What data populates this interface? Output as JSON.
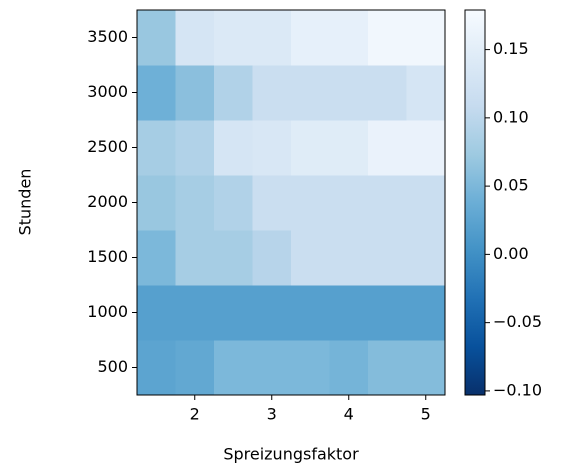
{
  "chart_data": {
    "type": "heatmap",
    "xlabel": "Spreizungsfaktor",
    "ylabel": "Stunden",
    "x": [
      1.5,
      2,
      2.5,
      3,
      3.5,
      4,
      4.5,
      5
    ],
    "y": [
      500,
      1000,
      1500,
      2000,
      2500,
      3000,
      3500
    ],
    "values": [
      [
        0.025,
        0.03,
        0.05,
        0.05,
        0.05,
        0.045,
        0.055,
        0.055
      ],
      [
        0.02,
        0.02,
        0.02,
        0.02,
        0.02,
        0.02,
        0.02,
        0.02
      ],
      [
        0.05,
        0.08,
        0.08,
        0.095,
        0.115,
        0.115,
        0.115,
        0.115
      ],
      [
        0.07,
        0.08,
        0.09,
        0.115,
        0.115,
        0.115,
        0.115,
        0.115
      ],
      [
        0.08,
        0.09,
        0.13,
        0.135,
        0.145,
        0.145,
        0.16,
        0.16
      ],
      [
        0.04,
        0.06,
        0.09,
        0.115,
        0.115,
        0.115,
        0.115,
        0.13
      ],
      [
        0.07,
        0.13,
        0.14,
        0.14,
        0.155,
        0.155,
        0.17,
        0.17
      ]
    ],
    "xlim": [
      1.25,
      5.25
    ],
    "xticks": [
      2,
      3,
      4,
      5
    ],
    "ylim": [
      250,
      3750
    ],
    "yticks": [
      500,
      1000,
      1500,
      2000,
      2500,
      3000,
      3500
    ],
    "clim": [
      -0.103,
      0.179
    ],
    "cticks": [
      {
        "value": -0.1,
        "label": "−0.10"
      },
      {
        "value": -0.05,
        "label": "−0.05"
      },
      {
        "value": 0,
        "label": "0.00"
      },
      {
        "value": 0.05,
        "label": "0.05"
      },
      {
        "value": 0.1,
        "label": "0.10"
      },
      {
        "value": 0.15,
        "label": "0.15"
      }
    ],
    "colorscale": [
      "#08306b",
      "#08519c",
      "#2171b5",
      "#4292c6",
      "#6baed6",
      "#9ecae1",
      "#c6dbef",
      "#deebf7",
      "#f7fbff"
    ]
  }
}
